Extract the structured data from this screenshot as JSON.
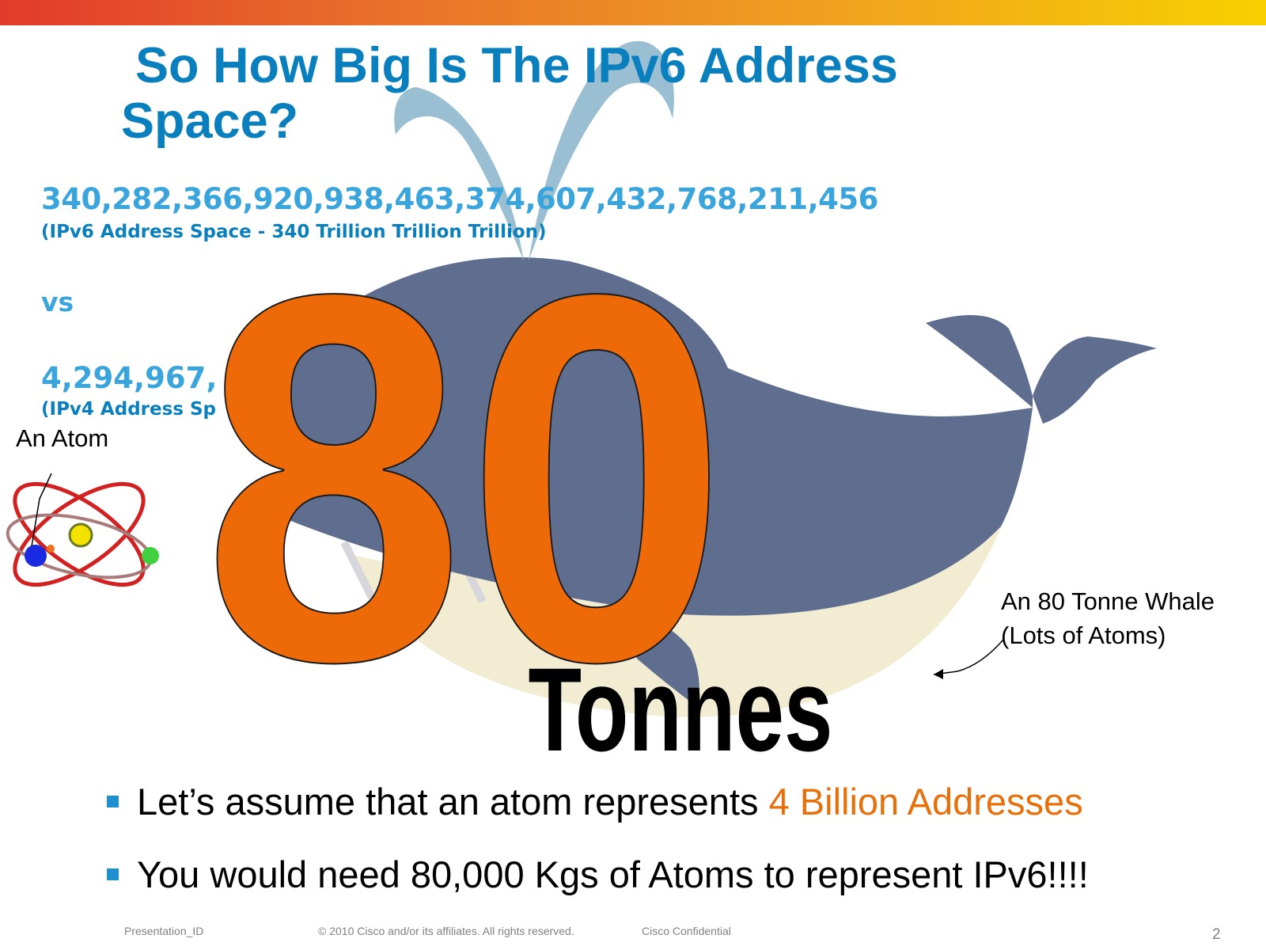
{
  "slide": {
    "title_line1": "So How Big Is The IPv6 Address",
    "title_line2": "Space?",
    "ipv6_number": "340,282,366,920,938,463,374,607,432,768,211,456",
    "ipv6_caption": "(IPv6 Address Space - 340 Trillion Trillion Trillion)",
    "vs_label": "vs",
    "ipv4_number_visible": "4,294,967,",
    "ipv4_caption_visible": "(IPv4 Address Sp",
    "big_number": "80",
    "big_unit": "Tonnes",
    "atom_label": "An Atom",
    "whale_label_line1": "An 80 Tonne Whale",
    "whale_label_line2": "(Lots of Atoms)"
  },
  "bullets": [
    {
      "text": "Let’s assume that an atom represents ",
      "highlight": "4 Billion Addresses"
    },
    {
      "text": "You would need 80,000 Kgs of Atoms to represent IPv6!!!!",
      "highlight": ""
    }
  ],
  "footer": {
    "presentation_id": "Presentation_ID",
    "copyright": "© 2010 Cisco and/or its affiliates. All rights reserved.",
    "confidential": "Cisco Confidential",
    "page_number": "2"
  },
  "colors": {
    "title": "#0a7fbd",
    "numbers": "#3aa5dc",
    "accent_orange": "#e8700a",
    "whale_body": "#5f6e8e",
    "whale_belly": "#f1ecd2",
    "bullet_square": "#1e90d0"
  },
  "icons": {
    "whale": "whale-illustration",
    "atom": "atom-illustration",
    "bullet": "square-bullet-icon"
  }
}
